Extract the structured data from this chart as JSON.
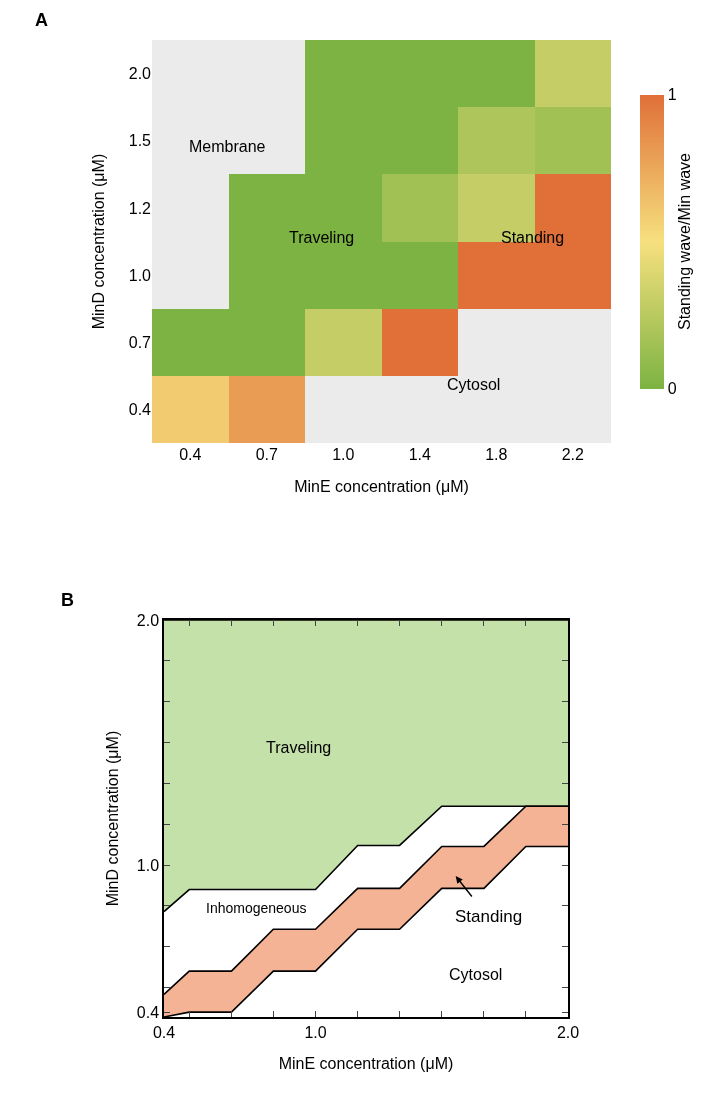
{
  "chart_data": [
    {
      "type": "heatmap",
      "xlabel": "MinE concentration (μM)",
      "ylabel": "MinD concentration (μM)",
      "clabel": "Standing wave/Min wave",
      "categories": [
        "0.4",
        "0.7",
        "1.0",
        "1.4",
        "1.8",
        "2.2"
      ],
      "y_categories": [
        "2.0",
        "1.5",
        "1.2",
        "1.0",
        "0.7",
        "0.4"
      ],
      "cells": [
        [
          null,
          null,
          0,
          0,
          0,
          0.3
        ],
        [
          null,
          null,
          0,
          0,
          0.2,
          0.15
        ],
        [
          null,
          0,
          0,
          0.15,
          0.3,
          1
        ],
        [
          null,
          0,
          0,
          0,
          1,
          1
        ],
        [
          0,
          0,
          0.3,
          1,
          null,
          null
        ],
        [
          0.6,
          0.8,
          null,
          null,
          null,
          null
        ]
      ],
      "clim": [
        0,
        1
      ],
      "cticks": [
        0,
        1
      ],
      "annotations": [
        "A",
        "Membrane",
        "Traveling",
        "Standing",
        "Cytosol"
      ]
    },
    {
      "type": "area",
      "xlabel": "MinE concentration (μM)",
      "ylabel": "MinD concentration (μM)",
      "xlim": [
        0.4,
        2.0
      ],
      "ylim": [
        0.38,
        2.0
      ],
      "xticks": [
        {
          "value": 0.4,
          "label": "0.4"
        },
        {
          "value": 0.5,
          "label": null
        },
        {
          "value": 0.667,
          "label": null
        },
        {
          "value": 0.833,
          "label": null
        },
        {
          "value": 1.0,
          "label": "1.0"
        },
        {
          "value": 1.167,
          "label": null
        },
        {
          "value": 1.333,
          "label": null
        },
        {
          "value": 1.5,
          "label": null
        },
        {
          "value": 1.667,
          "label": null
        },
        {
          "value": 1.833,
          "label": null
        },
        {
          "value": 2.0,
          "label": "2.0"
        }
      ],
      "yticks": [
        {
          "value": 0.4,
          "label": "0.4"
        },
        {
          "value": 0.5,
          "label": null
        },
        {
          "value": 0.667,
          "label": null
        },
        {
          "value": 0.833,
          "label": null
        },
        {
          "value": 1.0,
          "label": "1.0"
        },
        {
          "value": 1.167,
          "label": null
        },
        {
          "value": 1.333,
          "label": null
        },
        {
          "value": 1.5,
          "label": null
        },
        {
          "value": 1.667,
          "label": null
        },
        {
          "value": 1.833,
          "label": null
        },
        {
          "value": 2.0,
          "label": "2.0"
        }
      ],
      "marker": "none",
      "line_style": "solid",
      "x": [
        0.4,
        0.5,
        0.667,
        0.833,
        1.0,
        1.167,
        1.333,
        1.5,
        1.667,
        1.833,
        2.0
      ],
      "series": [
        {
          "color": "#c5e1aa",
          "values": [
            2.0,
            2.0,
            2.0,
            2.0,
            2.0,
            2.0,
            2.0,
            2.0,
            2.0,
            2.0,
            2.0
          ]
        },
        {
          "color": "#ffffff",
          "values": [
            0.81,
            0.9,
            0.9,
            0.9,
            0.9,
            1.08,
            1.08,
            1.24,
            1.24,
            1.24,
            1.24
          ]
        },
        {
          "color": "#f5b396",
          "values": [
            0.472,
            0.567,
            0.567,
            0.738,
            0.738,
            0.905,
            0.905,
            1.076,
            1.076,
            1.24,
            1.24
          ]
        },
        {
          "type": "line",
          "color": "#000000",
          "values": [
            0.38,
            0.4,
            0.4,
            0.567,
            0.567,
            0.738,
            0.738,
            0.905,
            0.905,
            1.076,
            1.076
          ]
        }
      ],
      "annotations": [
        "B",
        "Traveling",
        "Inhomogeneous",
        "Standing",
        "Cytosol"
      ]
    }
  ]
}
